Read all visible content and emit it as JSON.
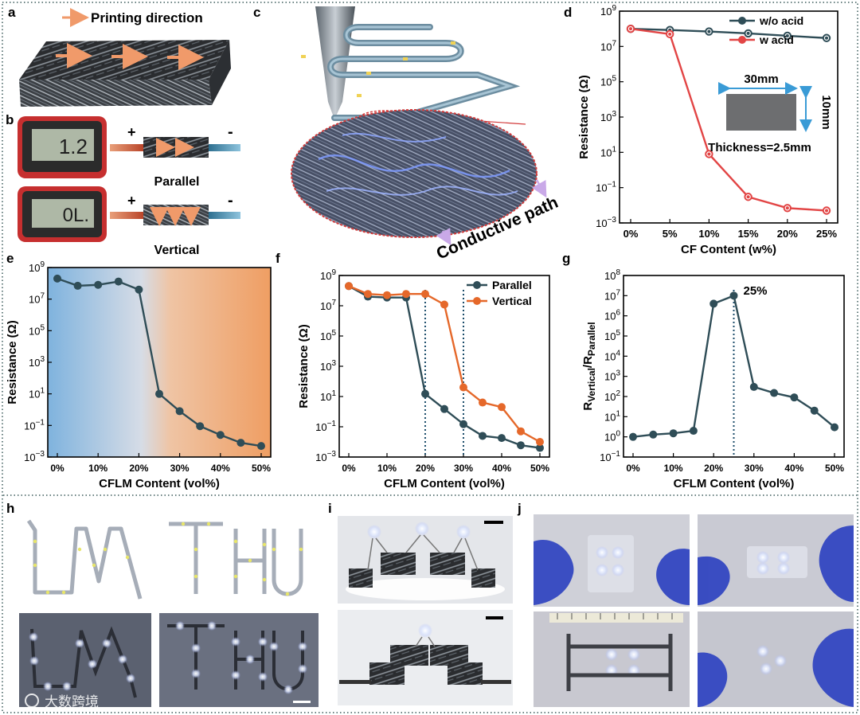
{
  "panels": {
    "a": {
      "label": "a",
      "arrow_text": "Printing direction"
    },
    "b": {
      "label": "b",
      "meter_top": "1.2",
      "meter_bottom": "0L.",
      "plus": "+",
      "minus": "-",
      "parallel": "Parallel",
      "vertical": "Vertical"
    },
    "c": {
      "label": "c",
      "path_text": "Conductive path"
    },
    "h": {
      "label": "h",
      "word1": "LM",
      "word2": "THU"
    },
    "i": {
      "label": "i"
    },
    "j": {
      "label": "j"
    }
  },
  "colors": {
    "dark_series": "#2f4d57",
    "orange_series": "#e5682a",
    "red_series": "#e24545",
    "border_dots": "#3a5a5a"
  },
  "watermark": "大数跨境",
  "chart_data": [
    {
      "id": "d",
      "label": "d",
      "type": "line",
      "xlabel": "CF Content (w%)",
      "ylabel": "Resistance (Ω)",
      "log_y": true,
      "ylim_exp": [
        -3,
        9
      ],
      "ytick_exps": [
        -3,
        -1,
        1,
        3,
        5,
        7,
        9
      ],
      "categories": [
        "0%",
        "5%",
        "10%",
        "15%",
        "20%",
        "25%"
      ],
      "series": [
        {
          "name": "w/o acid",
          "color": "#2f4d57",
          "values": [
            100000000.0,
            85000000.0,
            70000000.0,
            55000000.0,
            40000000.0,
            30000000.0
          ]
        },
        {
          "name": "w    acid",
          "color": "#e24545",
          "values": [
            100000000.0,
            50000000.0,
            8.0,
            0.03,
            0.007,
            0.005
          ]
        }
      ],
      "inset": {
        "width_label": "30mm",
        "height_label": "10mm",
        "thickness_label": "Thickness=2.5mm"
      }
    },
    {
      "id": "e",
      "label": "e",
      "type": "line",
      "xlabel": "CFLM Content (vol%)",
      "ylabel": "Resistance (Ω)",
      "log_y": true,
      "ylim_exp": [
        -3,
        9
      ],
      "ytick_exps": [
        -3,
        -1,
        1,
        3,
        5,
        7,
        9
      ],
      "xticks": [
        "0%",
        "10%",
        "20%",
        "30%",
        "40%",
        "50%"
      ],
      "x": [
        0,
        5,
        10,
        15,
        20,
        25,
        30,
        35,
        40,
        45,
        50
      ],
      "series": [
        {
          "name": "",
          "color": "#2f4d57",
          "values": [
            200000000.0,
            70000000.0,
            80000000.0,
            130000000.0,
            40000000.0,
            10.0,
            0.8,
            0.09,
            0.025,
            0.008,
            0.005
          ]
        }
      ]
    },
    {
      "id": "f",
      "label": "f",
      "type": "line",
      "xlabel": "CFLM Content (vol%)",
      "ylabel": "Resistance (Ω)",
      "log_y": true,
      "ylim_exp": [
        -3,
        9
      ],
      "ytick_exps": [
        -3,
        -1,
        1,
        3,
        5,
        7,
        9
      ],
      "xticks": [
        "0%",
        "10%",
        "20%",
        "30%",
        "40%",
        "50%"
      ],
      "x": [
        0,
        5,
        10,
        15,
        20,
        25,
        30,
        35,
        40,
        45,
        50
      ],
      "vlines": [
        20,
        30
      ],
      "series": [
        {
          "name": "Parallel",
          "color": "#2f4d57",
          "values": [
            200000000.0,
            40000000.0,
            35000000.0,
            35000000.0,
            15.0,
            1.5,
            0.15,
            0.025,
            0.018,
            0.006,
            0.004
          ]
        },
        {
          "name": "Vertical",
          "color": "#e5682a",
          "values": [
            200000000.0,
            60000000.0,
            50000000.0,
            60000000.0,
            60000000.0,
            12000000.0,
            40.0,
            4.0,
            2.0,
            0.05,
            0.01
          ]
        }
      ]
    },
    {
      "id": "g",
      "label": "g",
      "type": "line",
      "xlabel": "CFLM Content (vol%)",
      "ylabel_main": "R",
      "ylabel_sub1": "Vertical",
      "ylabel_sep": "/R",
      "ylabel_sub2": "Parallel",
      "log_y": true,
      "ylim_exp": [
        -1,
        8
      ],
      "ytick_exps": [
        -1,
        0,
        1,
        2,
        3,
        4,
        5,
        6,
        7,
        8
      ],
      "xticks": [
        "0%",
        "10%",
        "20%",
        "30%",
        "40%",
        "50%"
      ],
      "x": [
        0,
        5,
        10,
        15,
        20,
        25,
        30,
        35,
        40,
        45,
        50
      ],
      "vlines": [
        25
      ],
      "annotation": "25%",
      "series": [
        {
          "name": "",
          "color": "#2f4d57",
          "values": [
            1.0,
            1.3,
            1.5,
            2.0,
            4000000.0,
            10000000.0,
            300.0,
            150.0,
            90.0,
            20.0,
            3.0
          ]
        }
      ]
    }
  ]
}
